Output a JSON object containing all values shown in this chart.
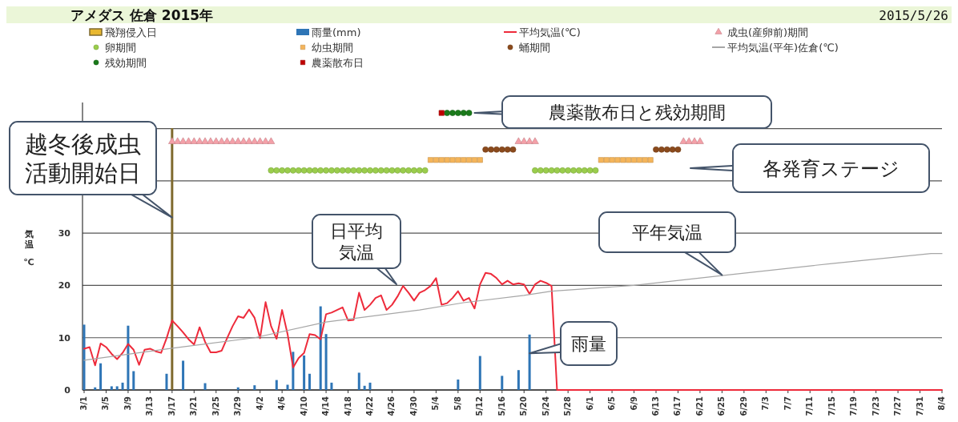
{
  "chart_data": {
    "type": "line",
    "title": "アメダス 佐倉 2015年",
    "subtitle": "2015/5/26",
    "ylabel": "気温℃",
    "xlim": [
      "--03-01",
      "--08-04"
    ],
    "xticks": [
      {
        "value": "--03-01",
        "label": "3/1"
      },
      {
        "value": "--03-05",
        "label": "3/5"
      },
      {
        "value": "--03-09",
        "label": "3/9"
      },
      {
        "value": "--03-13",
        "label": "3/13"
      },
      {
        "value": "--03-17",
        "label": "3/17"
      },
      {
        "value": "--03-21",
        "label": "3/21"
      },
      {
        "value": "--03-25",
        "label": "3/25"
      },
      {
        "value": "--03-29",
        "label": "3/29"
      },
      {
        "value": "--04-02",
        "label": "4/2"
      },
      {
        "value": "--04-06",
        "label": "4/6"
      },
      {
        "value": "--04-10",
        "label": "4/10"
      },
      {
        "value": "--04-14",
        "label": "4/14"
      },
      {
        "value": "--04-18",
        "label": "4/18"
      },
      {
        "value": "--04-22",
        "label": "4/22"
      },
      {
        "value": "--04-26",
        "label": "4/26"
      },
      {
        "value": "--04-30",
        "label": "4/30"
      },
      {
        "value": "--05-04",
        "label": "5/4"
      },
      {
        "value": "--05-08",
        "label": "5/8"
      },
      {
        "value": "--05-12",
        "label": "5/12"
      },
      {
        "value": "--05-16",
        "label": "5/16"
      },
      {
        "value": "--05-20",
        "label": "5/20"
      },
      {
        "value": "--05-24",
        "label": "5/24"
      },
      {
        "value": "--05-28",
        "label": "5/28"
      },
      {
        "value": "--06-01",
        "label": "6/1"
      },
      {
        "value": "--06-05",
        "label": "6/5"
      },
      {
        "value": "--06-09",
        "label": "6/9"
      },
      {
        "value": "--06-13",
        "label": "6/13"
      },
      {
        "value": "--06-17",
        "label": "6/17"
      },
      {
        "value": "--06-21",
        "label": "6/21"
      },
      {
        "value": "--06-25",
        "label": "6/25"
      },
      {
        "value": "--06-29",
        "label": "6/29"
      },
      {
        "value": "--07-03",
        "label": "7/3"
      },
      {
        "value": "--07-07",
        "label": "7/7"
      },
      {
        "value": "--07-11",
        "label": "7/11"
      },
      {
        "value": "--07-15",
        "label": "7/15"
      },
      {
        "value": "--07-19",
        "label": "7/19"
      },
      {
        "value": "--07-23",
        "label": "7/23"
      },
      {
        "value": "--07-27",
        "label": "7/27"
      },
      {
        "value": "--07-31",
        "label": "7/31"
      },
      {
        "value": "--08-04",
        "label": "8/4"
      }
    ],
    "ylim": [
      0,
      55
    ],
    "yticks": [
      0,
      10,
      20,
      30,
      {
        "value": 40,
        "label": null
      },
      {
        "value": 50,
        "label": null
      }
    ],
    "grid": "y",
    "legend": "top",
    "ref_lines": [
      {
        "axis": "x",
        "value": "--03-17",
        "label": "飛翔侵入日",
        "color": "#7f6a2e"
      }
    ],
    "series": [
      {
        "name": "雨量(mm)",
        "type": "bar",
        "color": "#2e75b6",
        "x": [
          "--03-01",
          "--03-03",
          "--03-04",
          "--03-06",
          "--03-07",
          "--03-08",
          "--03-09",
          "--03-10",
          "--03-16",
          "--03-19",
          "--03-23",
          "--03-29",
          "--04-01",
          "--04-05",
          "--04-07",
          "--04-08",
          "--04-10",
          "--04-11",
          "--04-13",
          "--04-14",
          "--04-15",
          "--04-20",
          "--04-21",
          "--04-22",
          "--05-08",
          "--05-12",
          "--05-16",
          "--05-19",
          "--05-21"
        ],
        "values": [
          12.5,
          0.5,
          5.1,
          0.7,
          0.7,
          1.4,
          12.3,
          3.6,
          3.1,
          5.6,
          1.3,
          0.5,
          0.9,
          1.9,
          1.0,
          7.3,
          6.6,
          3.1,
          16.0,
          10.7,
          1.4,
          3.3,
          0.8,
          1.4,
          2.0,
          6.5,
          2.7,
          3.8,
          10.6
        ]
      },
      {
        "name": "平均気温(℃)",
        "type": "line",
        "color": "#ee2b3b",
        "x": [
          "--03-01",
          "--03-02",
          "--03-03",
          "--03-04",
          "--03-05",
          "--03-06",
          "--03-07",
          "--03-08",
          "--03-09",
          "--03-10",
          "--03-11",
          "--03-12",
          "--03-13",
          "--03-14",
          "--03-15",
          "--03-16",
          "--03-17",
          "--03-18",
          "--03-19",
          "--03-20",
          "--03-21",
          "--03-22",
          "--03-23",
          "--03-24",
          "--03-25",
          "--03-26",
          "--03-27",
          "--03-28",
          "--03-29",
          "--03-30",
          "--03-31",
          "--04-01",
          "--04-02",
          "--04-03",
          "--04-04",
          "--04-05",
          "--04-06",
          "--04-07",
          "--04-08",
          "--04-09",
          "--04-10",
          "--04-11",
          "--04-12",
          "--04-13",
          "--04-14",
          "--04-15",
          "--04-16",
          "--04-17",
          "--04-18",
          "--04-19",
          "--04-20",
          "--04-21",
          "--04-22",
          "--04-23",
          "--04-24",
          "--04-25",
          "--04-26",
          "--04-27",
          "--04-28",
          "--04-29",
          "--04-30",
          "--05-01",
          "--05-02",
          "--05-03",
          "--05-04",
          "--05-05",
          "--05-06",
          "--05-07",
          "--05-08",
          "--05-09",
          "--05-10",
          "--05-11",
          "--05-12",
          "--05-13",
          "--05-14",
          "--05-15",
          "--05-16",
          "--05-17",
          "--05-18",
          "--05-19",
          "--05-20",
          "--05-21",
          "--05-22",
          "--05-23",
          "--05-24",
          "--05-25",
          "--05-26",
          "--08-04"
        ],
        "values": [
          7.9,
          8.2,
          4.7,
          8.9,
          8.2,
          6.9,
          5.9,
          7.1,
          8.8,
          7.7,
          4.8,
          7.7,
          7.9,
          7.4,
          7.1,
          9.9,
          13.3,
          12.2,
          11.0,
          9.7,
          8.7,
          12.0,
          9.2,
          7.2,
          7.2,
          7.5,
          9.9,
          12.2,
          14.1,
          13.8,
          15.4,
          13.8,
          9.9,
          16.8,
          12.2,
          9.8,
          15.3,
          10.7,
          4.3,
          6.1,
          7.1,
          10.7,
          10.5,
          9.7,
          14.5,
          14.8,
          15.3,
          15.8,
          13.3,
          13.4,
          18.6,
          15.3,
          16.3,
          17.6,
          18.1,
          15.3,
          16.3,
          17.9,
          19.9,
          18.6,
          17.1,
          18.6,
          19.1,
          19.9,
          21.4,
          16.3,
          16.6,
          17.6,
          18.9,
          17.1,
          17.6,
          15.6,
          20.2,
          22.4,
          22.2,
          21.4,
          20.2,
          20.9,
          20.2,
          20.4,
          20.2,
          18.4,
          20.2,
          20.9,
          20.5,
          19.9,
          0,
          0
        ]
      },
      {
        "name": "成虫(産卵前)期間",
        "type": "scatter",
        "marker": "triangle",
        "color": "#f4a0a8",
        "x": [
          "--03-17",
          "--03-18",
          "--03-19",
          "--03-20",
          "--03-21",
          "--03-22",
          "--03-23",
          "--03-24",
          "--03-25",
          "--03-26",
          "--03-27",
          "--03-28",
          "--03-29",
          "--03-30",
          "--03-31",
          "--04-01",
          "--04-02",
          "--04-03",
          "--04-04",
          "--05-19",
          "--05-20",
          "--05-21",
          "--05-22",
          "--06-18",
          "--06-19",
          "--06-20",
          "--06-21"
        ],
        "values": [
          47.5,
          47.5,
          47.5,
          47.5,
          47.5,
          47.5,
          47.5,
          47.5,
          47.5,
          47.5,
          47.5,
          47.5,
          47.5,
          47.5,
          47.5,
          47.5,
          47.5,
          47.5,
          47.5,
          47.5,
          47.5,
          47.5,
          47.5,
          47.5,
          47.5,
          47.5,
          47.5
        ]
      },
      {
        "name": "卵期間",
        "type": "scatter",
        "marker": "circle",
        "color": "#9acd4c",
        "x": [
          "--04-04",
          "--04-05",
          "--04-06",
          "--04-07",
          "--04-08",
          "--04-09",
          "--04-10",
          "--04-11",
          "--04-12",
          "--04-13",
          "--04-14",
          "--04-15",
          "--04-16",
          "--04-17",
          "--04-18",
          "--04-19",
          "--04-20",
          "--04-21",
          "--04-22",
          "--04-23",
          "--04-24",
          "--04-25",
          "--04-26",
          "--04-27",
          "--04-28",
          "--04-29",
          "--04-30",
          "--05-01",
          "--05-02",
          "--05-22",
          "--05-23",
          "--05-24",
          "--05-25",
          "--05-26",
          "--05-27",
          "--05-28",
          "--05-29",
          "--05-30",
          "--05-31",
          "--06-01",
          "--06-02"
        ],
        "values": [
          42,
          42,
          42,
          42,
          42,
          42,
          42,
          42,
          42,
          42,
          42,
          42,
          42,
          42,
          42,
          42,
          42,
          42,
          42,
          42,
          42,
          42,
          42,
          42,
          42,
          42,
          42,
          42,
          42,
          42,
          42,
          42,
          42,
          42,
          42,
          42,
          42,
          42,
          42,
          42,
          42
        ]
      },
      {
        "name": "幼虫期間",
        "type": "scatter",
        "marker": "square",
        "color": "#f5b55a",
        "x": [
          "--05-03",
          "--05-04",
          "--05-05",
          "--05-06",
          "--05-07",
          "--05-08",
          "--05-09",
          "--05-10",
          "--05-11",
          "--05-12",
          "--06-03",
          "--06-04",
          "--06-05",
          "--06-06",
          "--06-07",
          "--06-08",
          "--06-09",
          "--06-10",
          "--06-11",
          "--06-12"
        ],
        "values": [
          44,
          44,
          44,
          44,
          44,
          44,
          44,
          44,
          44,
          44,
          44,
          44,
          44,
          44,
          44,
          44,
          44,
          44,
          44,
          44
        ]
      },
      {
        "name": "蛹期間",
        "type": "scatter",
        "marker": "circle",
        "color": "#8b4a1c",
        "x": [
          "--05-13",
          "--05-14",
          "--05-15",
          "--05-16",
          "--05-17",
          "--05-18",
          "--06-13",
          "--06-14",
          "--06-15",
          "--06-16",
          "--06-17"
        ],
        "values": [
          46,
          46,
          46,
          46,
          46,
          46,
          46,
          46,
          46,
          46,
          46
        ]
      },
      {
        "name": "平均気温(平年)佐倉(℃)",
        "type": "line",
        "color": "#a6a6a6",
        "x": [
          "--03-01",
          "--03-17",
          "--04-01",
          "--04-14",
          "--05-01",
          "--05-09",
          "--05-20",
          "--05-25",
          "--06-09",
          "--06-25",
          "--07-15",
          "--08-02",
          "--08-04"
        ],
        "values": [
          5.7,
          8.0,
          10.0,
          13.0,
          15.3,
          16.7,
          18.1,
          18.9,
          20.0,
          21.9,
          24.2,
          26.1,
          26.1
        ]
      },
      {
        "name": "残効期間",
        "type": "scatter",
        "marker": "circle",
        "color": "#1a7a1a",
        "x": [
          "--05-06",
          "--05-07",
          "--05-08",
          "--05-09",
          "--05-10"
        ],
        "values": [
          53,
          53,
          53,
          53,
          53
        ]
      },
      {
        "name": "農薬散布日",
        "type": "scatter",
        "marker": "square",
        "color": "#c00000",
        "x": [
          "--05-05"
        ],
        "values": [
          53
        ]
      }
    ],
    "annotations": [
      {
        "text": "越冬後成虫活動開始日",
        "x": "--03-17",
        "y": 33
      },
      "日平均気温",
      {
        "text": "平年気温",
        "x": "--06-25",
        "y": 22
      },
      {
        "text": "雨量",
        "x": "--05-21",
        "y": 7
      },
      "各発育ステージ",
      {
        "text": "農薬散布日と残効期間",
        "x": "--05-11",
        "y": 53
      }
    ]
  }
}
